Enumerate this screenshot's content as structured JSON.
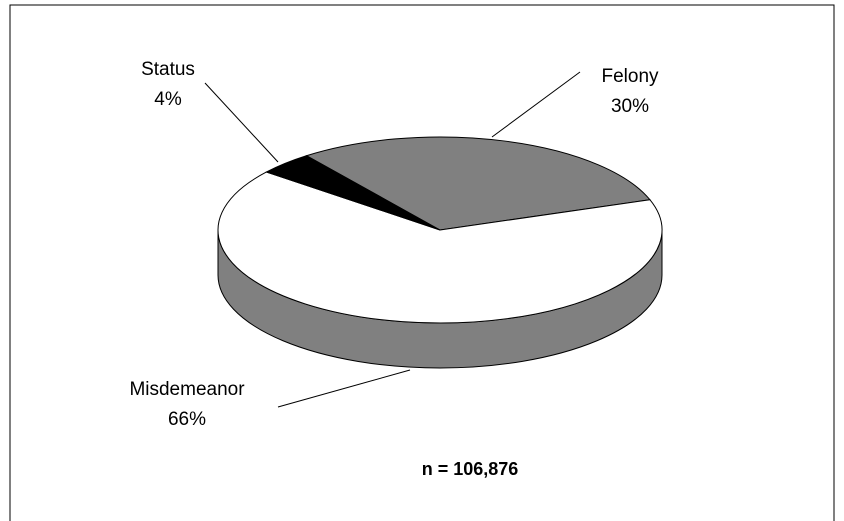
{
  "chart_data": {
    "type": "pie",
    "categories": [
      "Felony",
      "Misdemeanor",
      "Status"
    ],
    "values": [
      30,
      66,
      4
    ],
    "value_labels": [
      "30%",
      "66%",
      "4%"
    ],
    "colors": [
      "#808080",
      "#ffffff",
      "#000000"
    ],
    "side_color": "#808080",
    "annotation": "n = 106,876"
  }
}
